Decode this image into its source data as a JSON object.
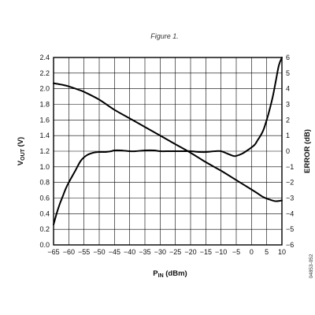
{
  "figure_caption": "Figure 1.",
  "figure_code": "04853-052",
  "chart_data": {
    "type": "line",
    "xlabel": {
      "main": "P",
      "sub": "IN",
      "rest": " (dBm)"
    },
    "ylabel_left": {
      "main": "V",
      "sub": "OUT",
      "rest": " (V)"
    },
    "ylabel_right": "ERROR (dB)",
    "xlim": [
      -65,
      10
    ],
    "ylim_left": [
      0,
      2.4
    ],
    "ylim_right": [
      -6,
      6
    ],
    "x_ticks": [
      -65,
      -60,
      -55,
      -50,
      -45,
      -40,
      -35,
      -30,
      -25,
      -20,
      -15,
      -10,
      -5,
      0,
      5,
      10
    ],
    "y_ticks_left": [
      0,
      0.2,
      0.4,
      0.6,
      0.8,
      1.0,
      1.2,
      1.4,
      1.6,
      1.8,
      2.0,
      2.2,
      2.4
    ],
    "y_ticks_right": [
      -6,
      -5,
      -4,
      -3,
      -2,
      -1,
      0,
      1,
      2,
      3,
      4,
      5,
      6
    ],
    "grid": true,
    "series": [
      {
        "axis": "left",
        "color": "#000000",
        "x": [
          -65,
          -62,
          -60,
          -57,
          -55,
          -50,
          -45,
          -40,
          -35,
          -30,
          -25,
          -20,
          -15,
          -10,
          -5,
          0,
          2,
          4,
          6,
          8,
          10
        ],
        "y": [
          2.07,
          2.05,
          2.03,
          1.99,
          1.96,
          1.86,
          1.73,
          1.62,
          1.51,
          1.4,
          1.29,
          1.18,
          1.06,
          0.95,
          0.83,
          0.71,
          0.66,
          0.61,
          0.58,
          0.56,
          0.57
        ]
      },
      {
        "axis": "right",
        "color": "#000000",
        "x": [
          -65,
          -64,
          -63,
          -62,
          -61,
          -60,
          -58,
          -56,
          -54,
          -52,
          -50,
          -48,
          -46,
          -45,
          -43,
          -40,
          -38,
          -35,
          -32,
          -30,
          -27,
          -25,
          -22,
          -20,
          -17,
          -15,
          -12,
          -10,
          -8,
          -6,
          -5,
          -3,
          -1,
          1,
          2,
          3,
          4,
          5,
          6,
          7,
          8,
          9,
          10
        ],
        "y": [
          -4.7,
          -4.0,
          -3.4,
          -2.9,
          -2.4,
          -2.0,
          -1.3,
          -0.6,
          -0.25,
          -0.1,
          -0.05,
          -0.05,
          0.0,
          0.05,
          0.05,
          0.0,
          0.0,
          0.05,
          0.05,
          0.0,
          0.0,
          0.0,
          0.0,
          0.0,
          -0.05,
          -0.05,
          0.0,
          0.0,
          -0.15,
          -0.3,
          -0.3,
          -0.15,
          0.1,
          0.4,
          0.7,
          1.0,
          1.4,
          2.0,
          2.7,
          3.5,
          4.5,
          5.5,
          6.0
        ]
      }
    ]
  }
}
